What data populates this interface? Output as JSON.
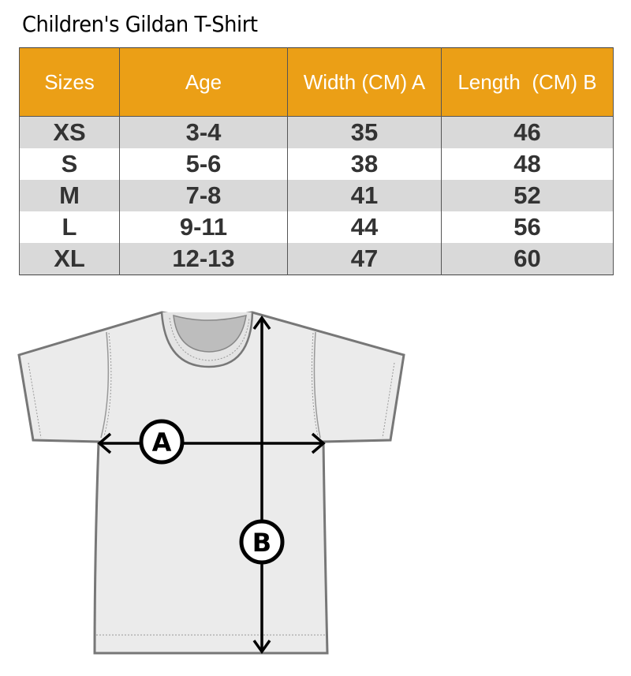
{
  "title": "Children's Gildan T-Shirt",
  "table": {
    "headers": [
      "Sizes",
      "Age",
      "Width (CM) A",
      "Length  (CM) B"
    ],
    "rows": [
      [
        "XS",
        "3-4",
        "35",
        "46"
      ],
      [
        "S",
        "5-6",
        "38",
        "48"
      ],
      [
        "M",
        "7-8",
        "41",
        "52"
      ],
      [
        "L",
        "9-11",
        "44",
        "56"
      ],
      [
        "XL",
        "12-13",
        "47",
        "60"
      ]
    ]
  },
  "diagram": {
    "width_label": "A",
    "length_label": "B"
  },
  "colors": {
    "header_bg": "#eb9f16",
    "stripe": "#d9d9d9",
    "shirt": "#ebebeb",
    "outline": "#777777"
  }
}
